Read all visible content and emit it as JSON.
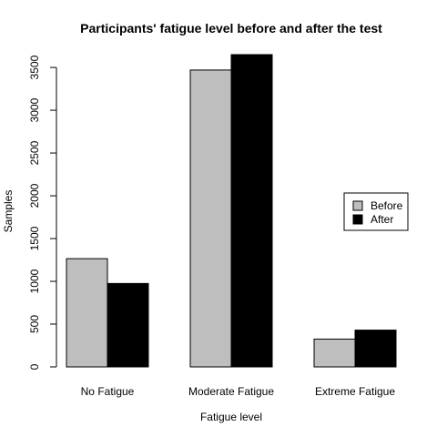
{
  "chart_data": {
    "type": "bar",
    "title": "Participants' fatigue level before and after the test",
    "xlabel": "Fatigue level",
    "ylabel": "Samples",
    "categories": [
      "No Fatigue",
      "Moderate Fatigue",
      "Extreme Fatigue"
    ],
    "series": [
      {
        "name": "Before",
        "color": "#bebebe",
        "values": [
          1265,
          3470,
          325
        ]
      },
      {
        "name": "After",
        "color": "#000000",
        "values": [
          975,
          3650,
          430
        ]
      }
    ],
    "ylim": [
      0,
      3650
    ],
    "yticks": [
      0,
      500,
      1000,
      1500,
      2000,
      2500,
      3000,
      3500
    ],
    "grid": false,
    "legend_position": "right"
  }
}
